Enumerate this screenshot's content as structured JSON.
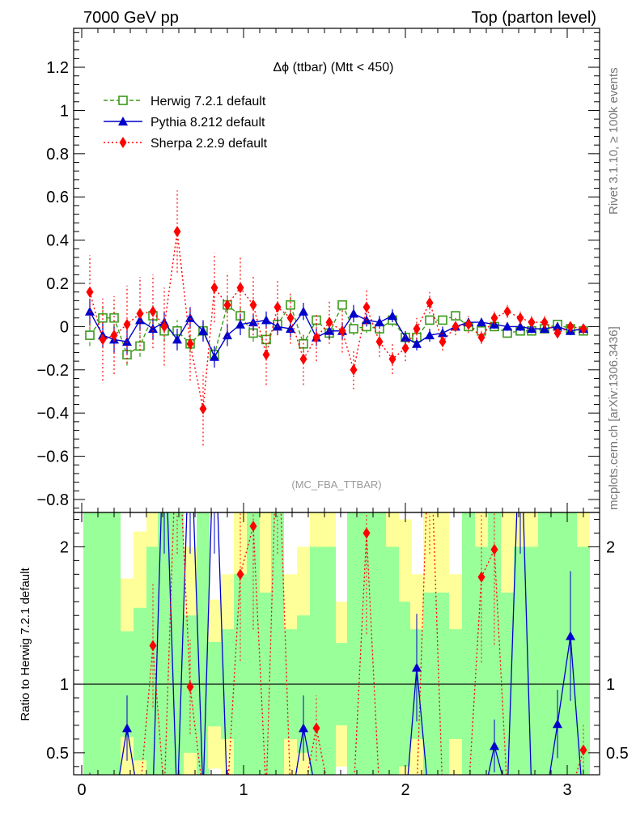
{
  "header": {
    "left": "7000 GeV pp",
    "right": "Top (parton level)"
  },
  "side_labels": {
    "rivet": "Rivet 3.1.10, ≥ 100k events",
    "mcplots": "mcplots.cern.ch [arXiv:1306.3436]"
  },
  "chart_data": {
    "type": "line",
    "title": "Δϕ (ttbar) (Mtt < 450)",
    "watermark": "(MC_FBA_TTBAR)",
    "ylabel_ratio": "Ratio to Herwig 7.2.1 default",
    "xlim": [
      -0.05,
      3.2
    ],
    "ylim_main": [
      -0.86,
      1.38
    ],
    "ylim_ratio": [
      0.34,
      2.25
    ],
    "x_ticks": [
      "0",
      "1",
      "2",
      "3"
    ],
    "y_ticks_main": [
      "−0.8",
      "−0.6",
      "−0.4",
      "−0.2",
      "0",
      "0.2",
      "0.4",
      "0.6",
      "0.8",
      "1",
      "1.2"
    ],
    "y_ticks_ratio": [
      "0.5",
      "1",
      "2"
    ],
    "x": [
      0.05,
      0.13,
      0.2,
      0.28,
      0.36,
      0.44,
      0.51,
      0.59,
      0.67,
      0.75,
      0.82,
      0.9,
      0.98,
      1.06,
      1.14,
      1.21,
      1.29,
      1.37,
      1.45,
      1.53,
      1.61,
      1.68,
      1.76,
      1.84,
      1.92,
      2.0,
      2.07,
      2.15,
      2.23,
      2.31,
      2.39,
      2.47,
      2.55,
      2.63,
      2.71,
      2.78,
      2.86,
      2.94,
      3.02,
      3.1
    ],
    "series": [
      {
        "name": "Herwig 7.2.1 default",
        "color": "#3a9a1a",
        "marker": "open-square",
        "line": "dashed",
        "values": [
          -0.04,
          0.04,
          0.04,
          -0.13,
          -0.09,
          0.05,
          -0.02,
          -0.02,
          -0.08,
          -0.02,
          -0.13,
          0.1,
          0.05,
          -0.03,
          -0.06,
          0.01,
          0.1,
          -0.08,
          0.03,
          -0.03,
          0.1,
          -0.01,
          0.0,
          -0.01,
          0.03,
          -0.05,
          -0.05,
          0.03,
          0.03,
          0.05,
          0.0,
          -0.02,
          0.0,
          -0.03,
          -0.02,
          -0.02,
          -0.01,
          0.01,
          -0.01,
          -0.02
        ],
        "errors": [
          0.05,
          0.05,
          0.05,
          0.05,
          0.05,
          0.05,
          0.05,
          0.05,
          0.04,
          0.04,
          0.04,
          0.04,
          0.04,
          0.04,
          0.04,
          0.04,
          0.04,
          0.04,
          0.03,
          0.03,
          0.03,
          0.03,
          0.03,
          0.03,
          0.03,
          0.03,
          0.02,
          0.02,
          0.02,
          0.02,
          0.02,
          0.02,
          0.02,
          0.02,
          0.02,
          0.02,
          0.02,
          0.02,
          0.02,
          0.02
        ]
      },
      {
        "name": "Pythia 8.212 default",
        "color": "#0000cc",
        "marker": "triangle",
        "line": "solid",
        "values": [
          0.07,
          -0.04,
          -0.06,
          -0.07,
          0.03,
          -0.01,
          0.02,
          -0.06,
          0.04,
          -0.02,
          -0.14,
          -0.04,
          0.01,
          0.02,
          0.03,
          0.0,
          -0.01,
          0.07,
          -0.05,
          -0.02,
          -0.02,
          0.06,
          0.03,
          0.02,
          0.05,
          -0.05,
          -0.08,
          -0.04,
          -0.03,
          0.0,
          0.02,
          0.02,
          0.01,
          0.0,
          0.0,
          -0.01,
          -0.01,
          0.0,
          -0.02,
          -0.01
        ],
        "errors": [
          0.06,
          0.06,
          0.06,
          0.06,
          0.05,
          0.05,
          0.05,
          0.05,
          0.05,
          0.05,
          0.05,
          0.05,
          0.05,
          0.04,
          0.04,
          0.04,
          0.04,
          0.04,
          0.04,
          0.04,
          0.04,
          0.04,
          0.03,
          0.03,
          0.03,
          0.03,
          0.03,
          0.03,
          0.03,
          0.02,
          0.02,
          0.02,
          0.02,
          0.02,
          0.02,
          0.02,
          0.02,
          0.02,
          0.02,
          0.02
        ]
      },
      {
        "name": "Sherpa 2.2.9 default",
        "color": "#ff0000",
        "marker": "diamond",
        "line": "dotted",
        "values": [
          0.16,
          -0.06,
          -0.04,
          0.01,
          0.06,
          0.07,
          0.0,
          0.44,
          -0.08,
          -0.38,
          0.18,
          0.1,
          0.18,
          0.1,
          -0.13,
          0.09,
          0.04,
          -0.15,
          -0.05,
          0.02,
          -0.02,
          -0.2,
          0.09,
          -0.07,
          -0.15,
          -0.1,
          -0.01,
          0.11,
          -0.07,
          0.0,
          0.01,
          -0.05,
          0.04,
          0.07,
          0.04,
          0.02,
          0.02,
          -0.03,
          0.0,
          -0.01
        ],
        "errors": [
          0.17,
          0.19,
          0.18,
          0.18,
          0.17,
          0.17,
          0.18,
          0.19,
          0.17,
          0.17,
          0.16,
          0.15,
          0.15,
          0.14,
          0.14,
          0.13,
          0.12,
          0.12,
          0.11,
          0.1,
          0.1,
          0.09,
          0.08,
          0.07,
          0.07,
          0.06,
          0.05,
          0.05,
          0.04,
          0.04,
          0.04,
          0.03,
          0.03,
          0.03,
          0.03,
          0.03,
          0.03,
          0.02,
          0.02,
          0.02
        ]
      }
    ],
    "ratio_series": [
      {
        "name": "Pythia 8.212 default",
        "values": [
          0.25,
          0.2,
          0.1,
          0.68,
          0.1,
          0.2,
          3.0,
          0.1,
          3.0,
          0.2,
          3.0,
          0.15,
          0.1,
          0.1,
          0.1,
          0.05,
          0.1,
          0.68,
          0.2,
          0.1,
          0.1,
          0.2,
          0.1,
          0.1,
          0.1,
          0.1,
          1.12,
          0.1,
          0.1,
          0.1,
          0.1,
          0.1,
          0.55,
          0.2,
          3.0,
          0.2,
          0.1,
          0.71,
          1.35,
          0.1
        ]
      },
      {
        "name": "Sherpa 2.2.9 default",
        "values": [
          0.2,
          0.2,
          0.2,
          0.2,
          0.2,
          1.28,
          0.2,
          3.0,
          0.98,
          0.2,
          0.2,
          0.2,
          1.8,
          2.15,
          0.2,
          3.0,
          0.2,
          0.2,
          0.68,
          0.2,
          0.2,
          0.2,
          2.1,
          0.2,
          0.2,
          0.2,
          0.2,
          3.0,
          0.2,
          0.2,
          0.2,
          1.78,
          1.98,
          0.2,
          0.2,
          0.2,
          0.2,
          0.2,
          0.2,
          0.52
        ]
      }
    ]
  }
}
